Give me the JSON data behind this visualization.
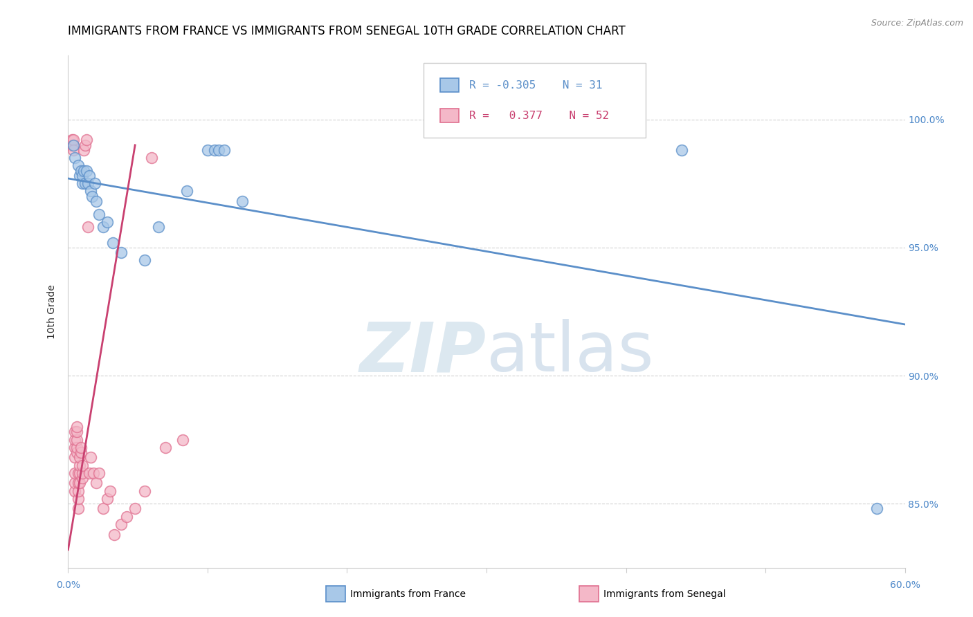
{
  "title": "IMMIGRANTS FROM FRANCE VS IMMIGRANTS FROM SENEGAL 10TH GRADE CORRELATION CHART",
  "source": "Source: ZipAtlas.com",
  "ylabel": "10th Grade",
  "y_tick_labels": [
    "85.0%",
    "90.0%",
    "95.0%",
    "100.0%"
  ],
  "y_tick_values": [
    0.85,
    0.9,
    0.95,
    1.0
  ],
  "x_range": [
    0.0,
    0.6
  ],
  "y_range": [
    0.825,
    1.025
  ],
  "legend_r_blue": "-0.305",
  "legend_n_blue": "31",
  "legend_r_pink": "0.377",
  "legend_n_pink": "52",
  "blue_color": "#a8c8e8",
  "blue_edge_color": "#5b8fc9",
  "pink_color": "#f4b8c8",
  "pink_edge_color": "#e07090",
  "blue_line_color": "#5b8fc9",
  "pink_line_color": "#c94070",
  "grid_color": "#cccccc",
  "background_color": "#ffffff",
  "watermark_color": "#dce8f0",
  "title_fontsize": 12,
  "axis_label_fontsize": 10,
  "tick_fontsize": 10,
  "blue_scatter_x": [
    0.004,
    0.005,
    0.007,
    0.008,
    0.009,
    0.01,
    0.01,
    0.011,
    0.012,
    0.013,
    0.014,
    0.015,
    0.016,
    0.017,
    0.019,
    0.02,
    0.022,
    0.025,
    0.028,
    0.032,
    0.038,
    0.055,
    0.065,
    0.085,
    0.1,
    0.105,
    0.108,
    0.112,
    0.125,
    0.44,
    0.58
  ],
  "blue_scatter_y": [
    0.99,
    0.985,
    0.982,
    0.978,
    0.98,
    0.975,
    0.978,
    0.98,
    0.975,
    0.98,
    0.975,
    0.978,
    0.972,
    0.97,
    0.975,
    0.968,
    0.963,
    0.958,
    0.96,
    0.952,
    0.948,
    0.945,
    0.958,
    0.972,
    0.988,
    0.988,
    0.988,
    0.988,
    0.968,
    0.988,
    0.848
  ],
  "pink_scatter_x": [
    0.002,
    0.003,
    0.003,
    0.004,
    0.004,
    0.004,
    0.005,
    0.005,
    0.005,
    0.005,
    0.005,
    0.005,
    0.005,
    0.006,
    0.006,
    0.006,
    0.006,
    0.006,
    0.007,
    0.007,
    0.007,
    0.007,
    0.007,
    0.008,
    0.008,
    0.008,
    0.008,
    0.009,
    0.009,
    0.01,
    0.01,
    0.01,
    0.011,
    0.012,
    0.013,
    0.014,
    0.015,
    0.016,
    0.018,
    0.02,
    0.022,
    0.025,
    0.028,
    0.03,
    0.033,
    0.038,
    0.042,
    0.048,
    0.055,
    0.06,
    0.07,
    0.082
  ],
  "pink_scatter_y": [
    0.99,
    0.99,
    0.992,
    0.99,
    0.992,
    0.988,
    0.855,
    0.858,
    0.862,
    0.868,
    0.872,
    0.875,
    0.878,
    0.87,
    0.872,
    0.875,
    0.878,
    0.88,
    0.848,
    0.852,
    0.855,
    0.858,
    0.862,
    0.858,
    0.862,
    0.865,
    0.868,
    0.87,
    0.872,
    0.86,
    0.862,
    0.865,
    0.988,
    0.99,
    0.992,
    0.958,
    0.862,
    0.868,
    0.862,
    0.858,
    0.862,
    0.848,
    0.852,
    0.855,
    0.838,
    0.842,
    0.845,
    0.848,
    0.855,
    0.985,
    0.872,
    0.875
  ],
  "blue_trendline_x": [
    0.0,
    0.6
  ],
  "blue_trendline_y": [
    0.977,
    0.92
  ],
  "pink_trendline_x": [
    0.0,
    0.048
  ],
  "pink_trendline_y": [
    0.832,
    0.99
  ]
}
